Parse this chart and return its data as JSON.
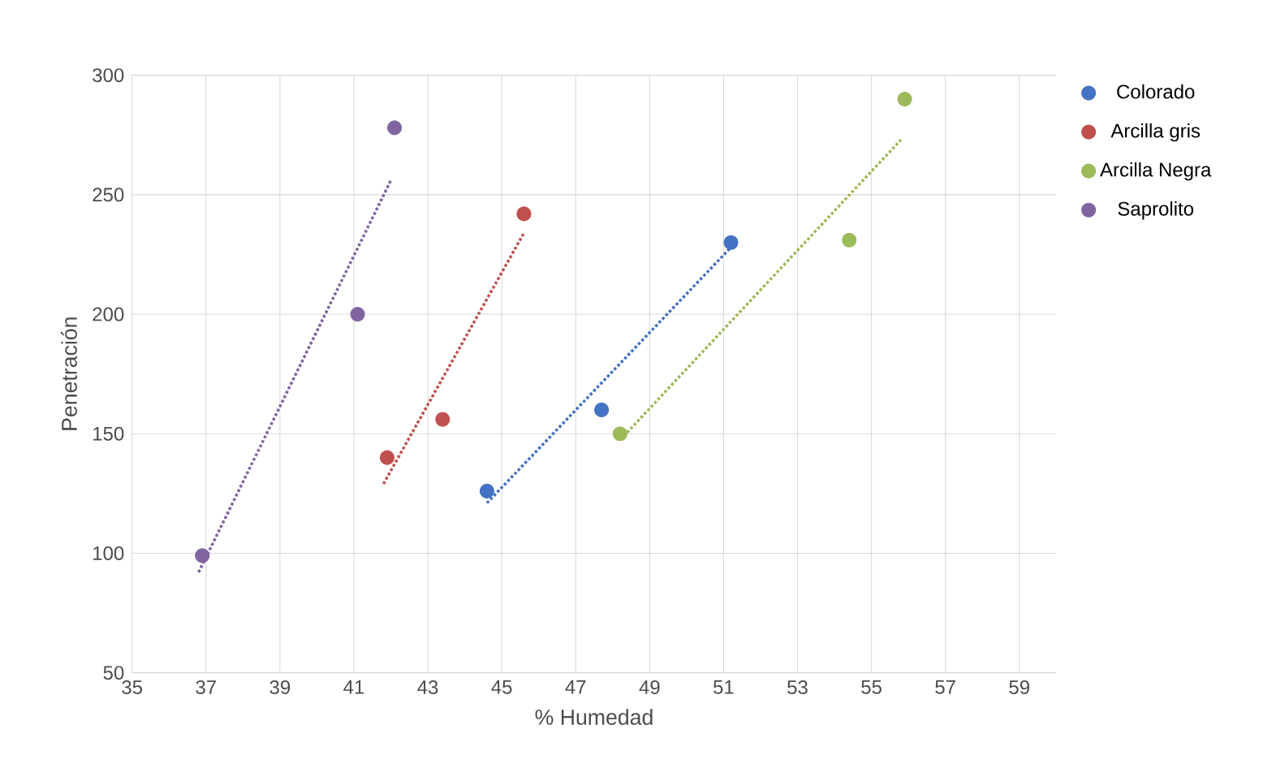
{
  "chart_data": {
    "type": "scatter",
    "xlabel": "% Humedad",
    "ylabel": "Penetración",
    "xlim": [
      35,
      60
    ],
    "ylim": [
      50,
      300
    ],
    "xticks": [
      35,
      37,
      39,
      41,
      43,
      45,
      47,
      49,
      51,
      53,
      55,
      57,
      59
    ],
    "yticks": [
      50,
      100,
      150,
      200,
      250,
      300
    ],
    "grid": true,
    "legend": "right",
    "series": [
      {
        "name": "Colorado",
        "marker": "circle",
        "color": "#4472c4",
        "x": [
          44.6,
          47.7,
          51.2
        ],
        "values": [
          126,
          160,
          230
        ]
      },
      {
        "name": "Arcilla gris",
        "marker": "circle",
        "color": "#c0504d",
        "x": [
          41.9,
          43.4,
          45.6
        ],
        "values": [
          140,
          156,
          242
        ]
      },
      {
        "name": "Arcilla Negra",
        "marker": "circle",
        "color": "#9bbb59",
        "x": [
          48.2,
          54.4,
          55.9
        ],
        "values": [
          150,
          231,
          290
        ]
      },
      {
        "name": "Saprolito",
        "marker": "circle",
        "color": "#8064a2",
        "x": [
          36.9,
          41.1,
          42.1
        ],
        "values": [
          99,
          200,
          278
        ]
      },
      {
        "type": "line",
        "marker": "none",
        "line_style": "dotted",
        "color": "#4472c4",
        "x": [
          44.6,
          51.2
        ],
        "values": [
          121,
          228
        ]
      },
      {
        "type": "line",
        "marker": "none",
        "line_style": "dotted",
        "color": "#c0504d",
        "x": [
          41.8,
          45.6
        ],
        "values": [
          129,
          234
        ]
      },
      {
        "type": "line",
        "marker": "none",
        "line_style": "dotted",
        "color": "#9bbb59",
        "x": [
          48.3,
          55.8
        ],
        "values": [
          149,
          273
        ]
      },
      {
        "type": "line",
        "marker": "none",
        "line_style": "dotted",
        "color": "#8064a2",
        "x": [
          36.8,
          42.0
        ],
        "values": [
          92,
          256
        ]
      }
    ]
  }
}
